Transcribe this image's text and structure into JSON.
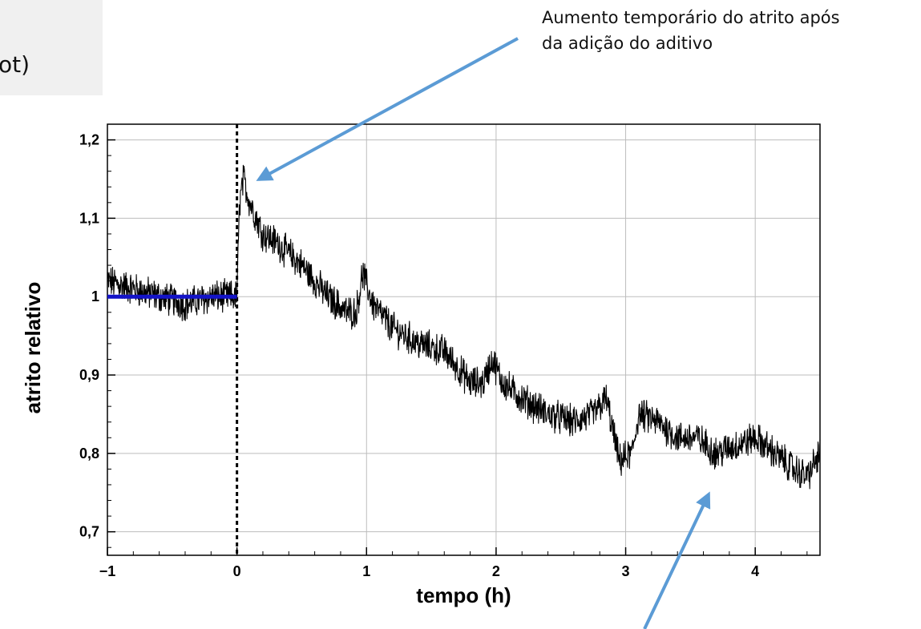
{
  "corner_text": "ot)",
  "annotation": {
    "line1": "Aumento temporário do atrito após",
    "line2": "da adição do aditivo"
  },
  "colors": {
    "trace": "#000000",
    "baseline": "#1414c8",
    "arrow": "#5b9bd5",
    "grid": "#bdbdbd"
  },
  "chart_data": {
    "type": "line",
    "xlabel": "tempo (h)",
    "ylabel": "atrito relativo",
    "xlim": [
      -1,
      4.5
    ],
    "ylim": [
      0.67,
      1.22
    ],
    "x_ticks": [
      -1,
      0,
      1,
      2,
      3,
      4
    ],
    "x_tick_labels": [
      "−1",
      "0",
      "1",
      "2",
      "3",
      "4"
    ],
    "y_ticks": [
      0.7,
      0.8,
      0.9,
      1.0,
      1.1,
      1.2
    ],
    "y_tick_labels": [
      "0,7",
      "0,8",
      "0,9",
      "1",
      "1,1",
      "1,2"
    ],
    "grid": true,
    "vertical_marker_x": 0,
    "baseline": {
      "x": [
        -1,
        0
      ],
      "y": 1.0
    },
    "series": [
      {
        "x": [
          -1.0,
          -0.8,
          -0.6,
          -0.4,
          -0.2,
          0.0,
          0.02,
          0.05,
          0.1,
          0.2,
          0.3,
          0.5,
          0.7,
          0.85,
          0.92,
          0.97,
          1.05,
          1.2,
          1.4,
          1.6,
          1.8,
          1.9,
          1.97,
          2.05,
          2.2,
          2.4,
          2.6,
          2.75,
          2.85,
          2.95,
          3.05,
          3.1,
          3.25,
          3.4,
          3.55,
          3.7,
          3.85,
          4.0,
          4.15,
          4.3,
          4.4,
          4.5
        ],
        "y": [
          1.02,
          1.01,
          1.0,
          0.99,
          1.0,
          1.0,
          1.12,
          1.15,
          1.12,
          1.08,
          1.07,
          1.04,
          1.0,
          0.98,
          0.98,
          1.03,
          0.99,
          0.96,
          0.94,
          0.93,
          0.89,
          0.89,
          0.92,
          0.89,
          0.87,
          0.85,
          0.84,
          0.85,
          0.87,
          0.79,
          0.8,
          0.85,
          0.84,
          0.82,
          0.82,
          0.8,
          0.81,
          0.82,
          0.8,
          0.78,
          0.77,
          0.8
        ]
      }
    ]
  }
}
